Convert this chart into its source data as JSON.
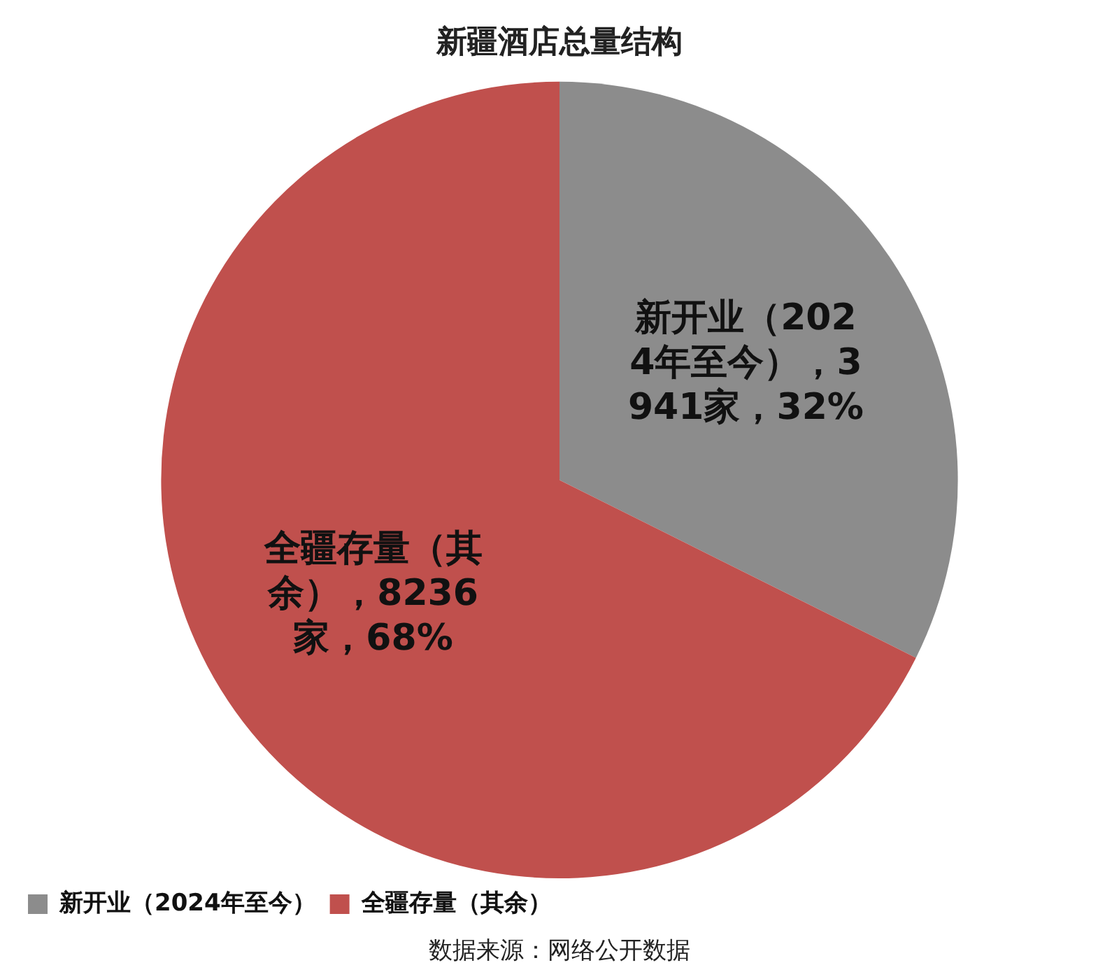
{
  "chart_data": {
    "type": "pie",
    "title": "新疆酒店总量结构",
    "categories": [
      "新开业（2024年至今）",
      "全疆存量（其余）"
    ],
    "values": [
      3941,
      8236
    ],
    "colors": [
      "#8c8c8c",
      "#c0504d"
    ],
    "value_labels": [
      "新开业（2024年至今），3941家，32%",
      "全疆存量（其余），8236家，68%"
    ],
    "legend": "bottom left",
    "annotations": [
      "数据来源：网络公开数据"
    ]
  }
}
